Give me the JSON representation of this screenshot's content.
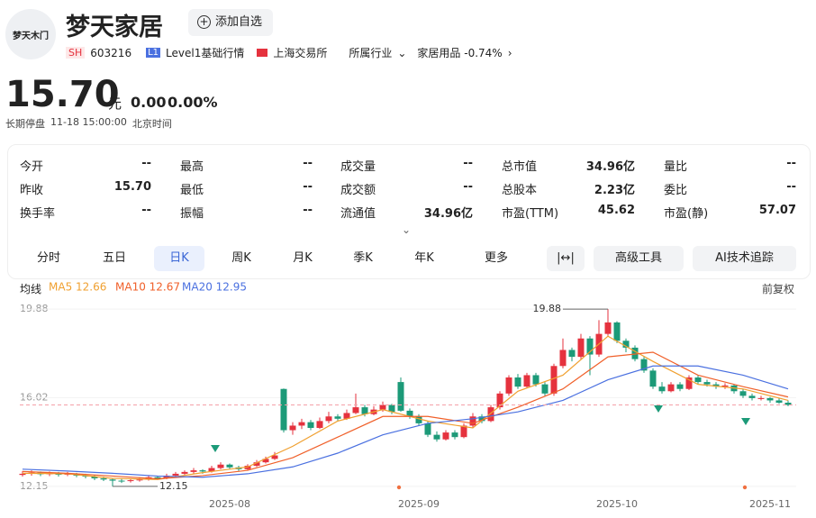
{
  "header": {
    "logo": "梦天木门",
    "name": "梦天家居",
    "add_button": "添加自选",
    "market": "SH",
    "code": "603216",
    "level_badge": "L1",
    "level": "Level1基础行情",
    "exchange": "上海交易所",
    "industry_label": "所属行业",
    "industry": "家居用品 -0.74%",
    "price": "15.70",
    "unit": "元",
    "change": "0.00",
    "change_pct": "0.00%",
    "status": "长期停盘",
    "time": "11-18 15:00:00",
    "timezone": "北京时间"
  },
  "stats": [
    [
      {
        "label": "今开",
        "value": "--"
      },
      {
        "label": "最高",
        "value": "--"
      },
      {
        "label": "成交量",
        "value": "--"
      },
      {
        "label": "总市值",
        "value": "34.96亿"
      },
      {
        "label": "量比",
        "value": "--"
      }
    ],
    [
      {
        "label": "昨收",
        "value": "15.70"
      },
      {
        "label": "最低",
        "value": "--"
      },
      {
        "label": "成交额",
        "value": "--"
      },
      {
        "label": "总股本",
        "value": "2.23亿"
      },
      {
        "label": "委比",
        "value": "--"
      }
    ],
    [
      {
        "label": "换手率",
        "value": "--"
      },
      {
        "label": "振幅",
        "value": "--"
      },
      {
        "label": "流通值",
        "value": "34.96亿"
      },
      {
        "label": "市盈(TTM)",
        "value": "45.62"
      },
      {
        "label": "市盈(静)",
        "value": "57.07"
      }
    ]
  ],
  "tabs": [
    "分时",
    "五日",
    "日K",
    "周K",
    "月K",
    "季K",
    "年K",
    "更多"
  ],
  "tools": [
    "高级工具",
    "AI技术追踪"
  ],
  "ma_title": "均线",
  "adjust": "前复权",
  "chart_data": {
    "type": "candlestick",
    "up_color": "#e5323e",
    "down_color": "#1c9a78",
    "categories": [
      null,
      null,
      null,
      null,
      null,
      null,
      null,
      null,
      null,
      null,
      null,
      null,
      null,
      null,
      null,
      null,
      null,
      null,
      null,
      null,
      null,
      null,
      null,
      "2025-08",
      null,
      null,
      null,
      null,
      null,
      null,
      null,
      null,
      null,
      null,
      null,
      null,
      null,
      null,
      null,
      null,
      null,
      null,
      null,
      null,
      "2025-09",
      null,
      null,
      null,
      null,
      null,
      null,
      null,
      null,
      null,
      null,
      null,
      null,
      null,
      null,
      null,
      null,
      null,
      null,
      null,
      null,
      null,
      "2025-10",
      null,
      null,
      null,
      null,
      null,
      null,
      null,
      null,
      null,
      null,
      null,
      null,
      null,
      null,
      null,
      null,
      "2025-11",
      null,
      null
    ],
    "ohlc": [
      [
        12.65,
        12.82,
        12.58,
        12.7
      ],
      [
        12.7,
        12.85,
        12.62,
        12.75
      ],
      [
        12.75,
        12.8,
        12.6,
        12.68
      ],
      [
        12.68,
        12.8,
        12.6,
        12.72
      ],
      [
        12.72,
        12.78,
        12.58,
        12.66
      ],
      [
        12.66,
        12.78,
        12.6,
        12.7
      ],
      [
        12.7,
        12.74,
        12.55,
        12.62
      ],
      [
        12.62,
        12.7,
        12.5,
        12.58
      ],
      [
        12.58,
        12.64,
        12.42,
        12.5
      ],
      [
        12.5,
        12.58,
        12.38,
        12.45
      ],
      [
        12.45,
        12.5,
        12.15,
        12.4
      ],
      [
        12.4,
        12.48,
        12.3,
        12.38
      ],
      [
        12.38,
        12.5,
        12.32,
        12.42
      ],
      [
        12.42,
        12.55,
        12.36,
        12.45
      ],
      [
        12.45,
        12.62,
        12.4,
        12.55
      ],
      [
        12.55,
        12.6,
        12.44,
        12.5
      ],
      [
        12.5,
        12.7,
        12.46,
        12.62
      ],
      [
        12.62,
        12.78,
        12.55,
        12.7
      ],
      [
        12.7,
        12.85,
        12.64,
        12.78
      ],
      [
        12.78,
        12.95,
        12.7,
        12.85
      ],
      [
        12.85,
        12.9,
        12.7,
        12.8
      ],
      [
        12.8,
        13.05,
        12.75,
        12.95
      ],
      [
        12.95,
        13.2,
        12.9,
        13.1
      ],
      [
        13.1,
        13.15,
        12.9,
        12.98
      ],
      [
        12.98,
        13.05,
        12.82,
        12.9
      ],
      [
        12.9,
        13.12,
        12.85,
        13.05
      ],
      [
        13.05,
        13.3,
        13.0,
        13.2
      ],
      [
        13.2,
        13.45,
        13.15,
        13.35
      ],
      [
        13.35,
        13.65,
        13.3,
        13.5
      ],
      [
        16.4,
        16.42,
        14.5,
        14.6
      ],
      [
        14.6,
        14.95,
        14.4,
        14.8
      ],
      [
        14.8,
        15.1,
        14.65,
        14.95
      ],
      [
        14.95,
        15.05,
        14.6,
        14.7
      ],
      [
        14.7,
        15.15,
        14.65,
        15.0
      ],
      [
        15.0,
        15.4,
        14.9,
        15.2
      ],
      [
        15.2,
        15.3,
        15.0,
        15.1
      ],
      [
        15.1,
        15.5,
        15.05,
        15.35
      ],
      [
        15.35,
        16.2,
        15.3,
        15.6
      ],
      [
        15.6,
        15.7,
        15.2,
        15.3
      ],
      [
        15.3,
        15.65,
        15.25,
        15.5
      ],
      [
        15.5,
        15.85,
        15.4,
        15.7
      ],
      [
        15.7,
        15.75,
        15.3,
        15.4
      ],
      [
        16.7,
        16.9,
        15.4,
        15.45
      ],
      [
        15.45,
        15.55,
        15.1,
        15.2
      ],
      [
        15.2,
        15.3,
        14.8,
        14.9
      ],
      [
        14.9,
        15.0,
        14.3,
        14.4
      ],
      [
        14.4,
        14.55,
        14.1,
        14.2
      ],
      [
        14.2,
        14.6,
        14.15,
        14.5
      ],
      [
        14.5,
        14.6,
        14.2,
        14.3
      ],
      [
        14.3,
        14.9,
        14.25,
        14.8
      ],
      [
        14.8,
        15.35,
        14.7,
        15.2
      ],
      [
        15.2,
        15.3,
        14.9,
        15.0
      ],
      [
        15.0,
        15.7,
        14.95,
        15.6
      ],
      [
        15.6,
        16.3,
        15.5,
        16.2
      ],
      [
        16.2,
        17.0,
        16.1,
        16.9
      ],
      [
        16.9,
        17.05,
        16.4,
        16.5
      ],
      [
        16.5,
        17.1,
        16.45,
        17.0
      ],
      [
        17.0,
        17.1,
        16.5,
        16.6
      ],
      [
        16.6,
        16.7,
        16.1,
        16.2
      ],
      [
        16.2,
        17.5,
        16.1,
        17.4
      ],
      [
        17.4,
        18.6,
        17.3,
        18.1
      ],
      [
        18.1,
        18.2,
        17.6,
        17.8
      ],
      [
        17.8,
        18.8,
        17.7,
        18.6
      ],
      [
        18.6,
        18.7,
        17.0,
        17.9
      ],
      [
        17.9,
        19.4,
        17.8,
        18.8
      ],
      [
        18.8,
        19.88,
        18.7,
        19.3
      ],
      [
        19.3,
        19.35,
        18.4,
        18.5
      ],
      [
        18.5,
        18.6,
        18.0,
        18.2
      ],
      [
        18.2,
        18.3,
        17.6,
        17.7
      ],
      [
        17.7,
        17.8,
        17.1,
        17.2
      ],
      [
        17.2,
        17.3,
        16.4,
        16.5
      ],
      [
        16.5,
        16.7,
        16.2,
        16.3
      ],
      [
        16.3,
        16.7,
        16.25,
        16.6
      ],
      [
        16.6,
        16.7,
        16.3,
        16.4
      ],
      [
        16.4,
        17.0,
        16.35,
        16.9
      ],
      [
        16.9,
        17.0,
        16.6,
        16.7
      ],
      [
        16.7,
        16.8,
        16.5,
        16.6
      ],
      [
        16.6,
        16.7,
        16.4,
        16.5
      ],
      [
        16.5,
        16.65,
        16.4,
        16.55
      ],
      [
        16.55,
        16.6,
        16.2,
        16.3
      ],
      [
        16.3,
        16.4,
        16.0,
        16.1
      ],
      [
        16.1,
        16.2,
        15.9,
        16.0
      ],
      [
        16.0,
        16.1,
        15.9,
        16.0
      ],
      [
        16.0,
        16.05,
        15.8,
        15.9
      ],
      [
        15.9,
        16.0,
        15.75,
        15.8
      ],
      [
        15.8,
        15.9,
        15.65,
        15.7
      ]
    ],
    "series": [
      {
        "name": "MA5 12.66",
        "color": "#f0a030",
        "x": [
          0,
          5,
          10,
          15,
          20,
          25,
          30,
          35,
          40,
          45,
          50,
          55,
          60,
          65,
          70,
          75,
          80,
          85
        ],
        "values": [
          12.72,
          12.7,
          12.5,
          12.45,
          12.75,
          13.0,
          13.9,
          15.0,
          15.5,
          15.0,
          14.7,
          16.3,
          17.0,
          18.7,
          17.6,
          16.6,
          16.4,
          15.9
        ]
      },
      {
        "name": "MA10 12.67",
        "color": "#f0602a",
        "x": [
          0,
          5,
          10,
          15,
          20,
          25,
          30,
          35,
          40,
          45,
          50,
          55,
          60,
          65,
          70,
          75,
          80,
          85
        ],
        "values": [
          12.8,
          12.72,
          12.6,
          12.48,
          12.62,
          12.85,
          13.4,
          14.3,
          15.2,
          15.2,
          14.9,
          15.6,
          16.4,
          17.8,
          18.0,
          17.0,
          16.5,
          16.05
        ]
      },
      {
        "name": "MA20 12.95",
        "color": "#4a70e0",
        "x": [
          0,
          5,
          10,
          15,
          20,
          25,
          30,
          35,
          40,
          45,
          50,
          55,
          60,
          65,
          70,
          75,
          80,
          85
        ],
        "values": [
          12.9,
          12.82,
          12.72,
          12.6,
          12.55,
          12.7,
          13.0,
          13.6,
          14.4,
          14.9,
          15.1,
          15.4,
          15.9,
          16.8,
          17.4,
          17.4,
          17.0,
          16.4
        ]
      }
    ],
    "ylim": [
      11.95,
      20.2
    ],
    "yticks": [
      19.88,
      16.02,
      12.15
    ]
  }
}
